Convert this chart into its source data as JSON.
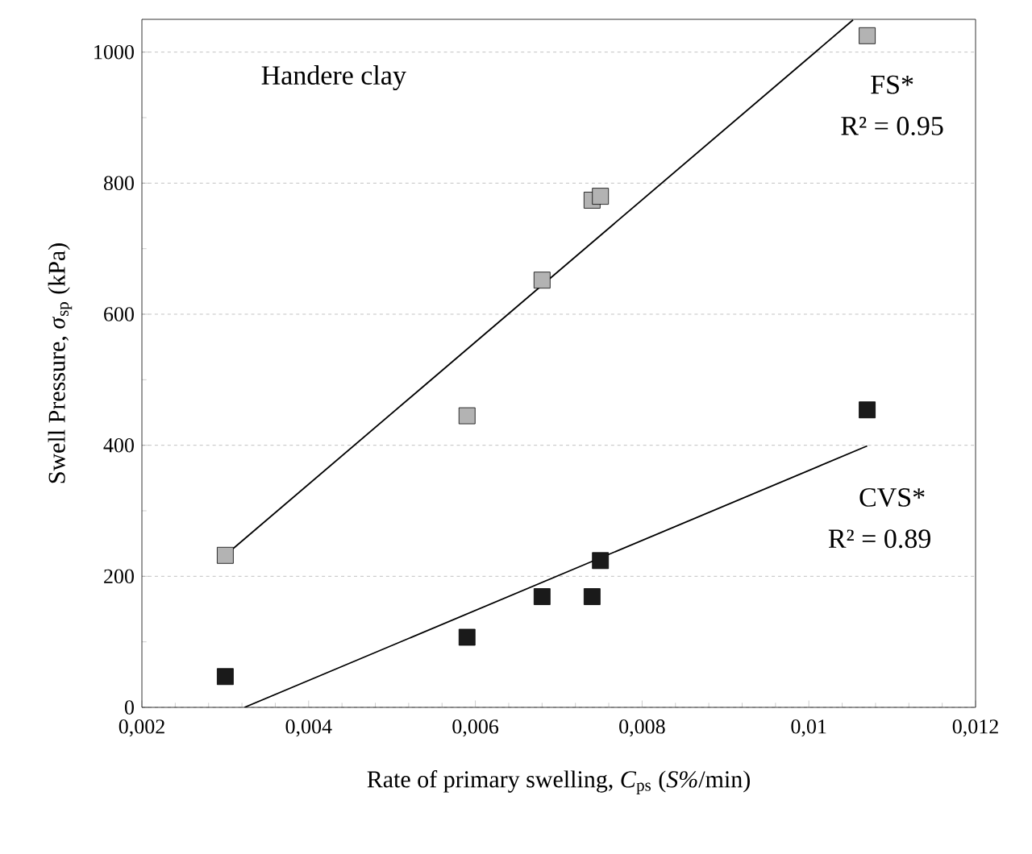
{
  "chart_data": {
    "type": "scatter",
    "xlabel": "Rate of primary swelling, *C*$_{ps}$ (*S%*/min)",
    "ylabel": "Swell Pressure, *σ*$_{sp}$ (kPa)",
    "xlim": [
      0.002,
      0.012
    ],
    "ylim": [
      0,
      1050
    ],
    "xticks": [
      {
        "value": 0.002,
        "label": "0,002"
      },
      {
        "value": 0.004,
        "label": "0,004"
      },
      {
        "value": 0.006,
        "label": "0,006"
      },
      {
        "value": 0.008,
        "label": "0,008"
      },
      {
        "value": 0.01,
        "label": "0,01"
      },
      {
        "value": 0.012,
        "label": "0,012"
      }
    ],
    "yticks": [
      0,
      200,
      400,
      600,
      800,
      1000
    ],
    "grid": "y",
    "marker": "square",
    "annotations": [
      "Handere clay",
      "R² = 0.95",
      "R² = 0.89"
    ],
    "series": [
      {
        "name": "FS*",
        "color": "#b3b3b3",
        "x": [
          0.003,
          0.0059,
          0.0068,
          0.0074,
          0.0075,
          0.0107
        ],
        "values": [
          232,
          445,
          652,
          774,
          780,
          1025
        ]
      },
      {
        "name": "CVS*",
        "color": "#1a1a1a",
        "x": [
          0.003,
          0.0059,
          0.0068,
          0.0074,
          0.0075,
          0.0107
        ],
        "values": [
          47,
          107,
          169,
          169,
          224,
          454
        ]
      },
      {
        "type": "line",
        "marker": "none",
        "color": "#000000",
        "x": [
          0.003,
          0.01053
        ],
        "values": [
          232,
          1049
        ]
      },
      {
        "type": "line",
        "marker": "none",
        "color": "#000000",
        "x": [
          0.00323,
          0.0107
        ],
        "values": [
          0,
          399
        ]
      }
    ]
  }
}
